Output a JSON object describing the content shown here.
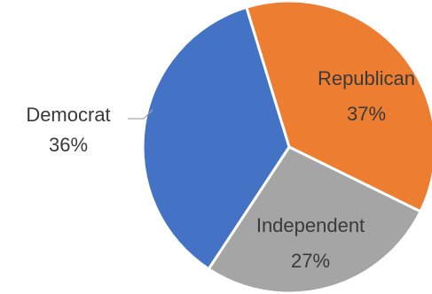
{
  "chart_data": {
    "type": "pie",
    "title": "",
    "legend": "none",
    "slices": [
      {
        "name": "Republican",
        "value": 37,
        "label": "37%",
        "color": "#ED7D31"
      },
      {
        "name": "Independent",
        "value": 27,
        "label": "27%",
        "color": "#A5A5A5"
      },
      {
        "name": "Democrat",
        "value": 36,
        "label": "36%",
        "color": "#4472C4"
      }
    ],
    "start_angle_deg": -17,
    "direction": "clockwise"
  }
}
